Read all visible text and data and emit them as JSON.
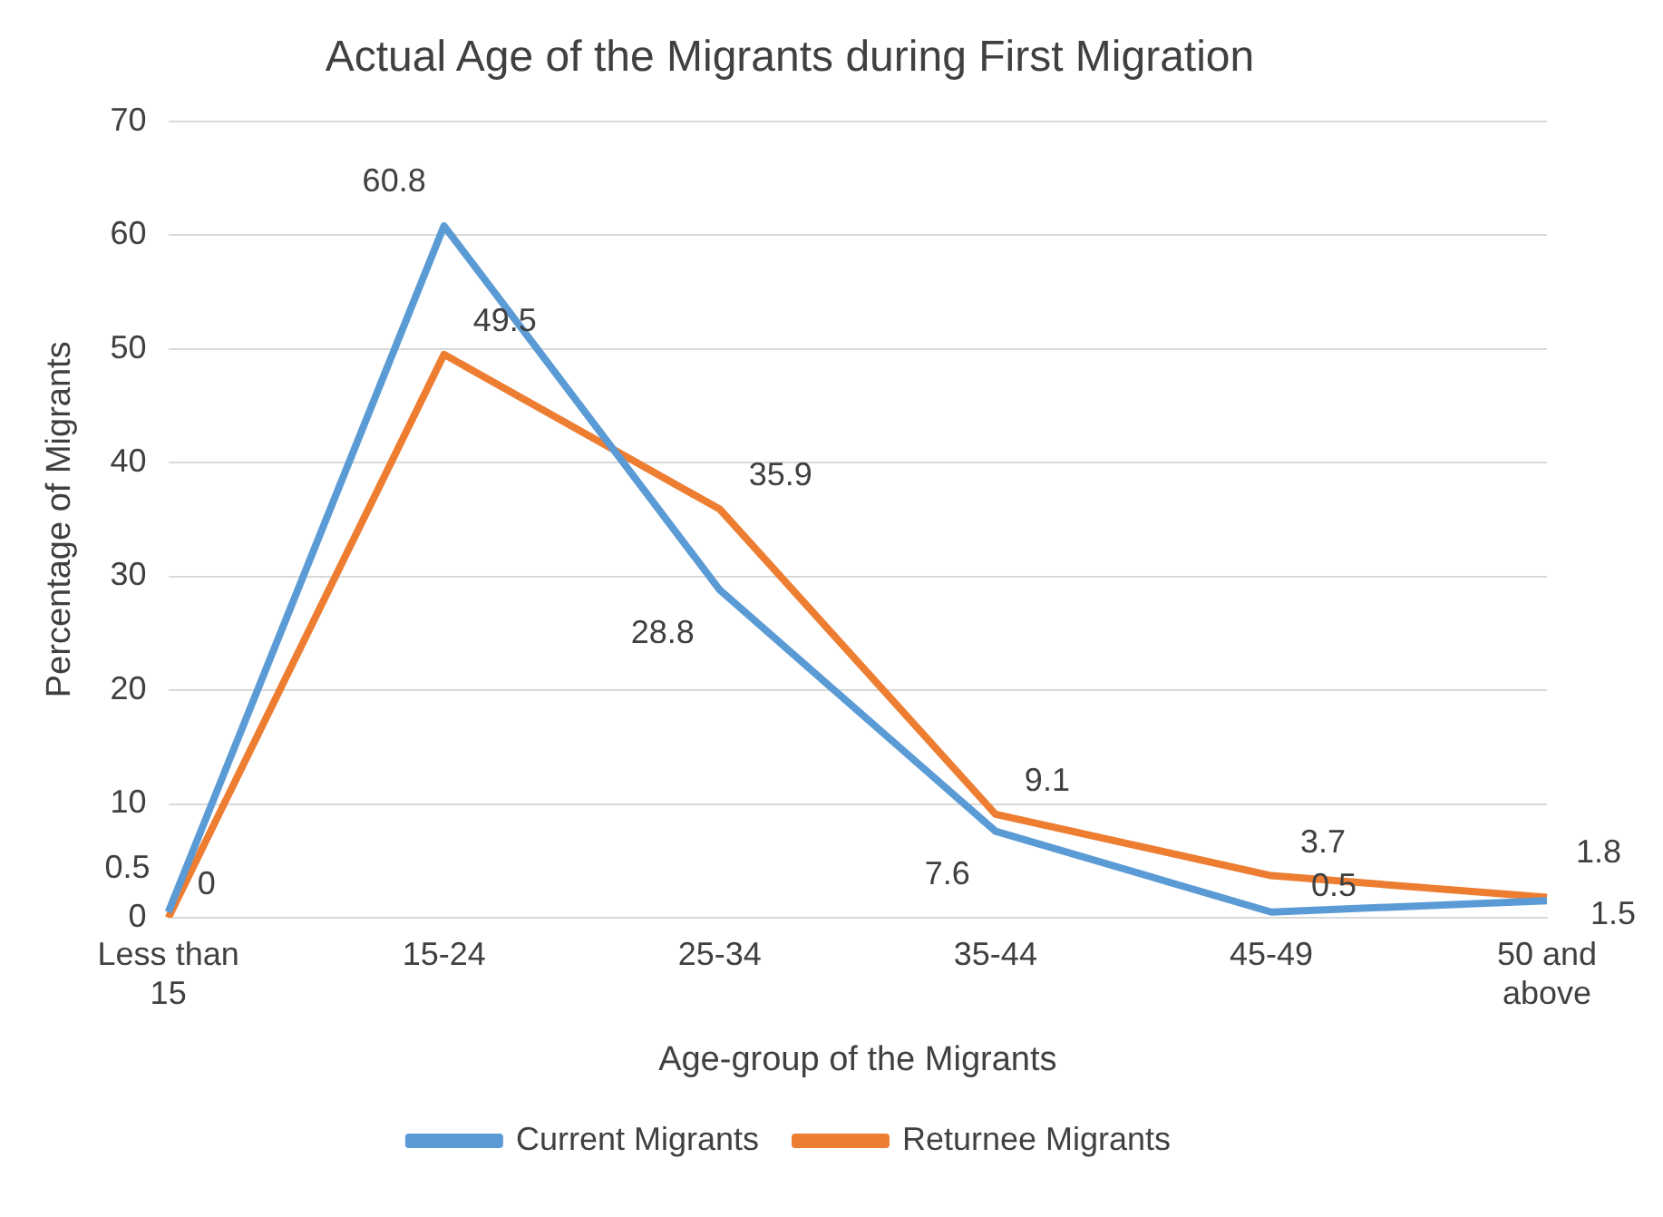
{
  "chart_data": {
    "type": "line",
    "title": "Actual Age of the Migrants during First Migration",
    "xlabel": "Age-group of the Migrants",
    "ylabel": "Percentage of Migrants",
    "categories": [
      "Less than 15",
      "15-24",
      "25-34",
      "35-44",
      "45-49",
      "50 and above"
    ],
    "series": [
      {
        "name": "Current Migrants",
        "color": "#5b9bd5",
        "values": [
          0.5,
          60.8,
          28.8,
          7.6,
          0.5,
          1.5
        ]
      },
      {
        "name": "Returnee Migrants",
        "color": "#ed7d31",
        "values": [
          0,
          49.5,
          35.9,
          9.1,
          3.7,
          1.8
        ]
      }
    ],
    "ylim": [
      0,
      70
    ],
    "yticks": [
      0,
      10,
      20,
      30,
      40,
      50,
      60,
      70
    ],
    "grid": "y",
    "legend": "bottom",
    "marker": "none",
    "line_style": "solid",
    "data_labels": true
  }
}
